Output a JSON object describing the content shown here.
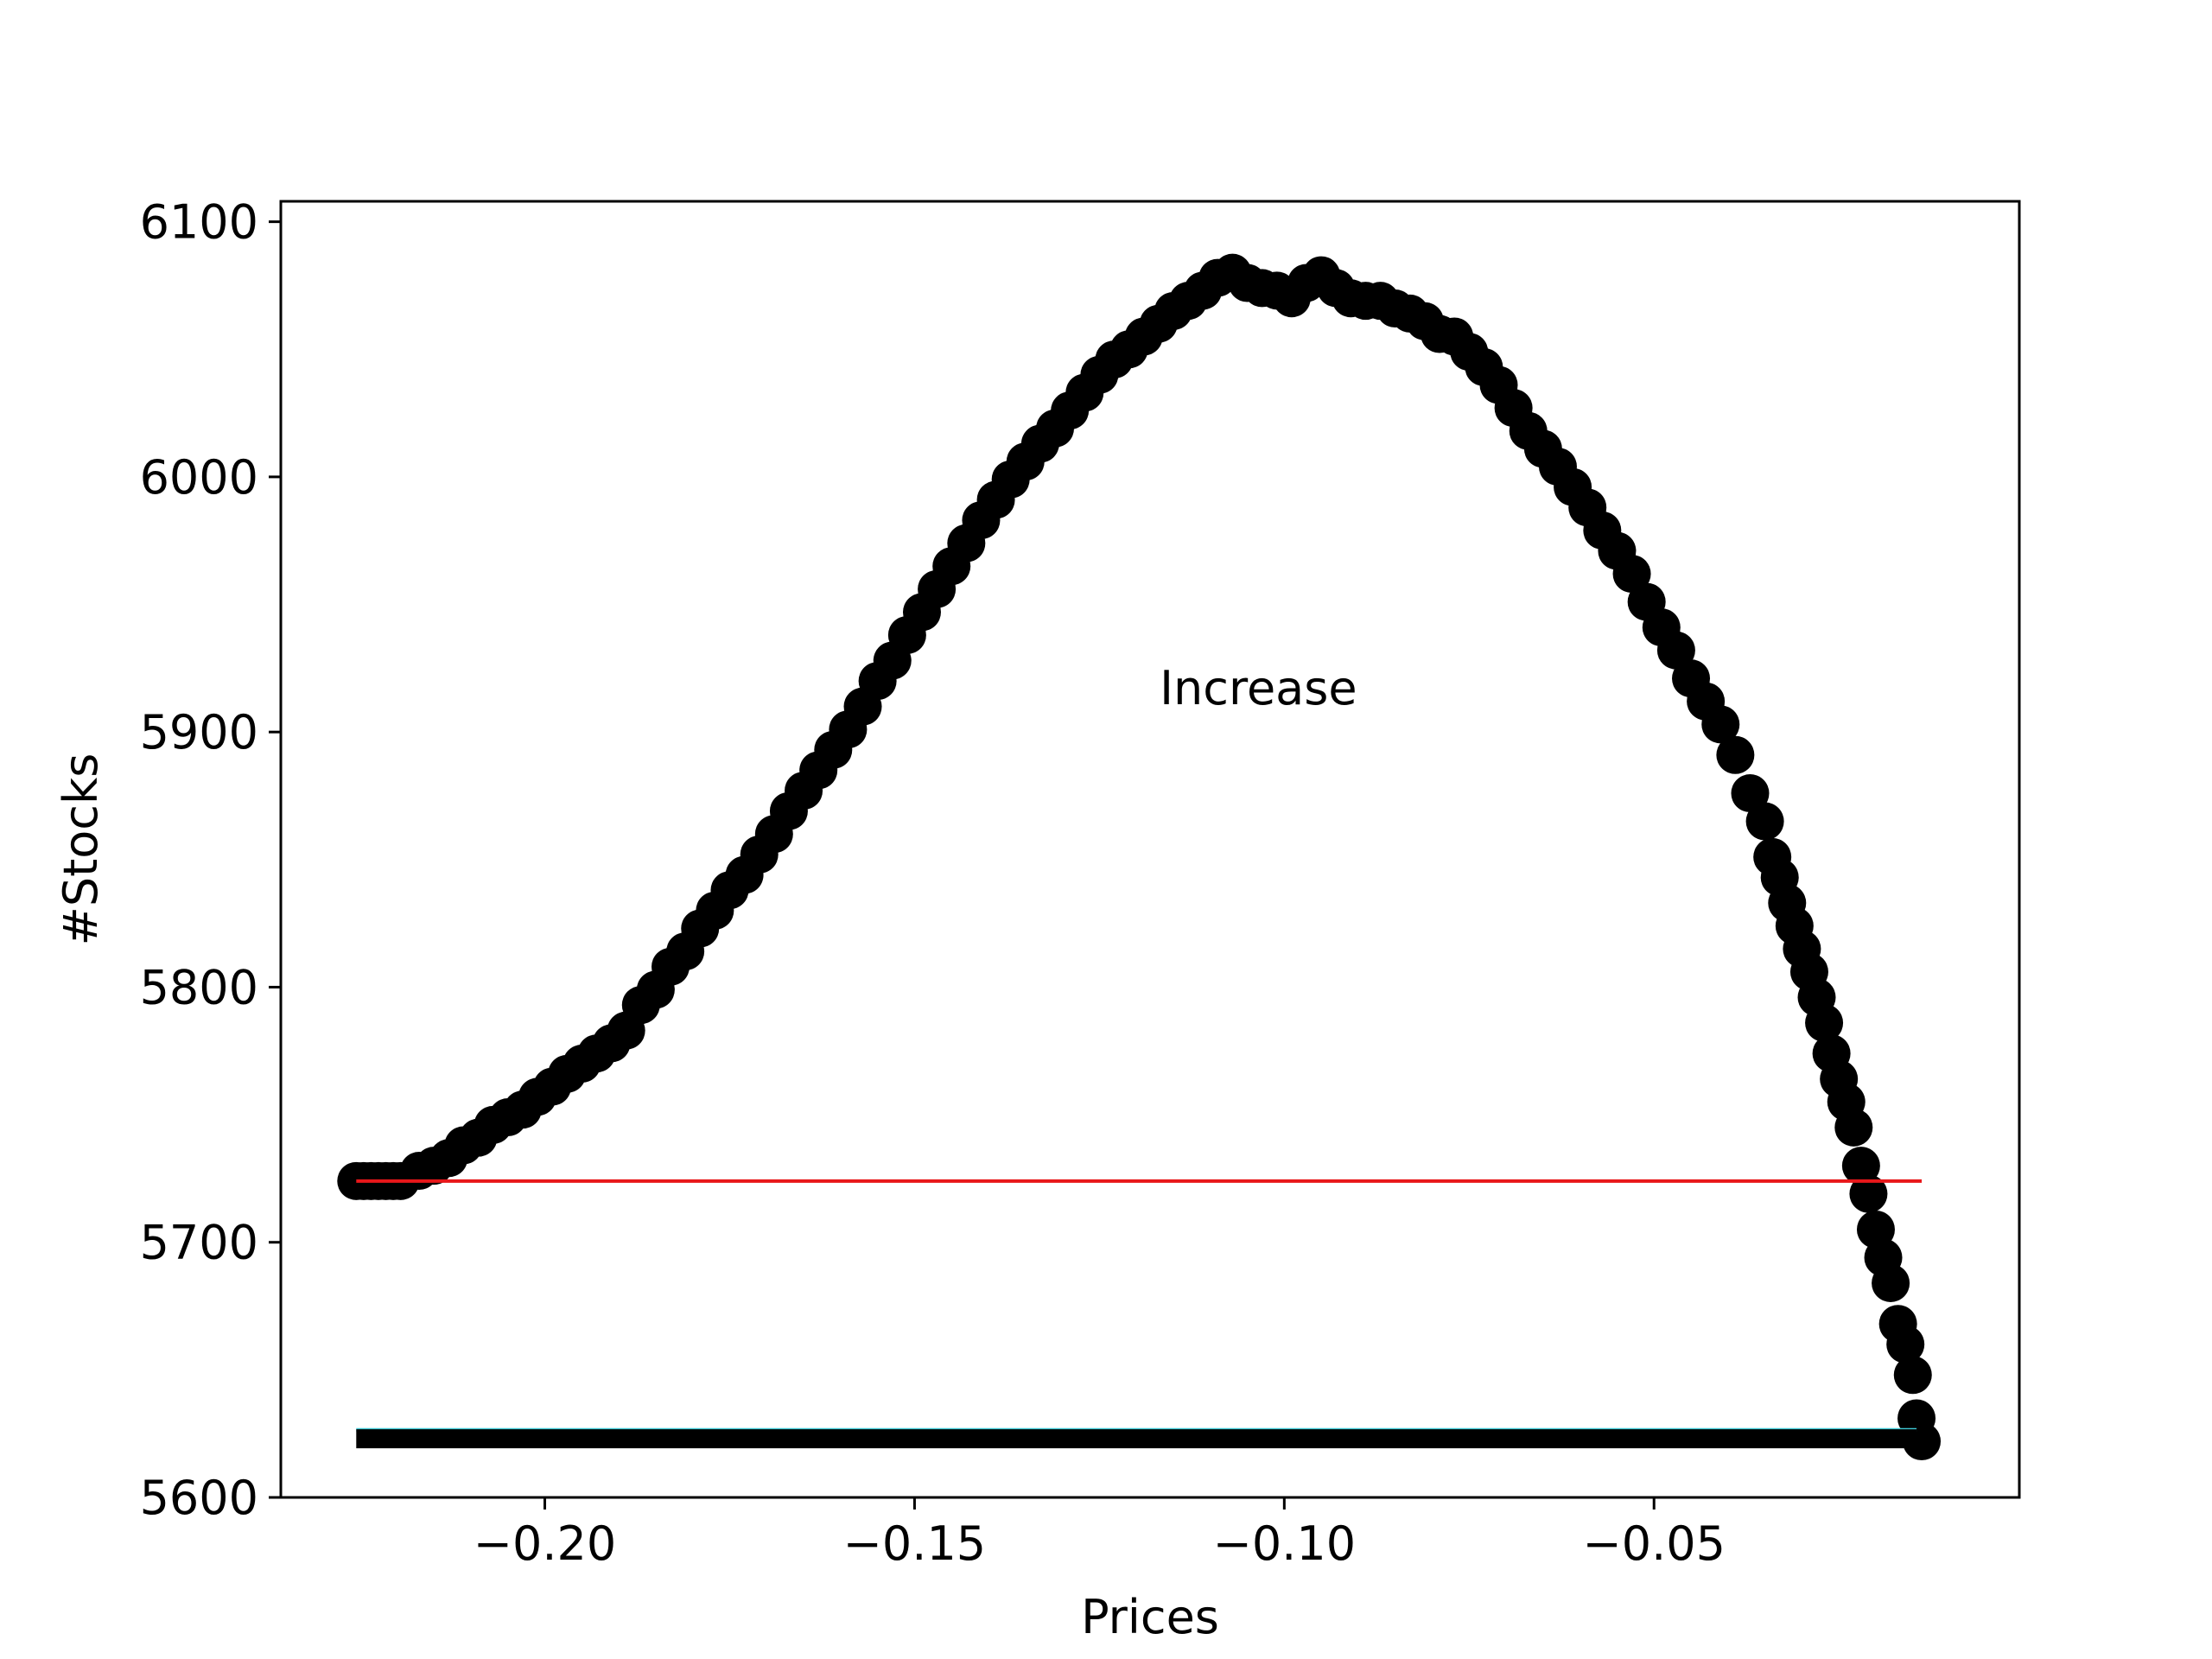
{
  "chart_data": {
    "type": "scatter",
    "xlabel": "Prices",
    "ylabel": "#Stocks",
    "annotation": "Increase",
    "xlim": [
      -0.2357,
      -0.0006
    ],
    "ylim": [
      5600,
      6108
    ],
    "xticks": [
      -0.2,
      -0.15,
      -0.1,
      -0.05
    ],
    "xtick_labels": [
      "−0.20",
      "−0.15",
      "−0.10",
      "−0.05"
    ],
    "yticks": [
      5600,
      5700,
      5800,
      5900,
      6000,
      6100
    ],
    "ytick_labels": [
      "5600",
      "5700",
      "5800",
      "5900",
      "6000",
      "6100"
    ],
    "grid": false,
    "series": [
      {
        "style": "markers",
        "color": "#000000",
        "points": [
          [
            -0.2255,
            5724
          ],
          [
            -0.2245,
            5724
          ],
          [
            -0.2235,
            5724
          ],
          [
            -0.2225,
            5724
          ],
          [
            -0.2215,
            5724
          ],
          [
            -0.2205,
            5724
          ],
          [
            -0.2195,
            5724
          ],
          [
            -0.217,
            5728
          ],
          [
            -0.215,
            5730
          ],
          [
            -0.213,
            5733
          ],
          [
            -0.211,
            5738
          ],
          [
            -0.209,
            5741
          ],
          [
            -0.207,
            5746
          ],
          [
            -0.205,
            5749
          ],
          [
            -0.203,
            5752
          ],
          [
            -0.201,
            5757
          ],
          [
            -0.199,
            5761
          ],
          [
            -0.197,
            5766
          ],
          [
            -0.195,
            5770
          ],
          [
            -0.193,
            5774
          ],
          [
            -0.191,
            5778
          ],
          [
            -0.189,
            5783
          ],
          [
            -0.187,
            5793
          ],
          [
            -0.185,
            5799
          ],
          [
            -0.183,
            5808
          ],
          [
            -0.181,
            5814
          ],
          [
            -0.179,
            5823
          ],
          [
            -0.177,
            5830
          ],
          [
            -0.175,
            5838
          ],
          [
            -0.173,
            5844
          ],
          [
            -0.171,
            5852
          ],
          [
            -0.169,
            5860
          ],
          [
            -0.167,
            5869
          ],
          [
            -0.165,
            5877
          ],
          [
            -0.163,
            5885
          ],
          [
            -0.161,
            5893
          ],
          [
            -0.159,
            5901
          ],
          [
            -0.157,
            5910
          ],
          [
            -0.155,
            5920
          ],
          [
            -0.153,
            5928
          ],
          [
            -0.151,
            5938
          ],
          [
            -0.149,
            5947
          ],
          [
            -0.147,
            5956
          ],
          [
            -0.145,
            5965
          ],
          [
            -0.143,
            5974
          ],
          [
            -0.141,
            5983
          ],
          [
            -0.139,
            5991
          ],
          [
            -0.137,
            5999
          ],
          [
            -0.135,
            6006
          ],
          [
            -0.133,
            6013
          ],
          [
            -0.131,
            6019
          ],
          [
            -0.129,
            6026
          ],
          [
            -0.127,
            6033
          ],
          [
            -0.125,
            6040
          ],
          [
            -0.123,
            6046
          ],
          [
            -0.121,
            6050
          ],
          [
            -0.119,
            6055
          ],
          [
            -0.117,
            6060
          ],
          [
            -0.115,
            6065
          ],
          [
            -0.113,
            6069
          ],
          [
            -0.111,
            6073
          ],
          [
            -0.109,
            6078
          ],
          [
            -0.107,
            6080
          ],
          [
            -0.105,
            6076
          ],
          [
            -0.103,
            6074
          ],
          [
            -0.101,
            6073
          ],
          [
            -0.099,
            6070
          ],
          [
            -0.097,
            6076
          ],
          [
            -0.095,
            6079
          ],
          [
            -0.093,
            6074
          ],
          [
            -0.091,
            6070
          ],
          [
            -0.089,
            6069
          ],
          [
            -0.087,
            6069
          ],
          [
            -0.085,
            6066
          ],
          [
            -0.083,
            6064
          ],
          [
            -0.081,
            6061
          ],
          [
            -0.079,
            6056
          ],
          [
            -0.077,
            6055
          ],
          [
            -0.075,
            6049
          ],
          [
            -0.073,
            6043
          ],
          [
            -0.071,
            6036
          ],
          [
            -0.069,
            6027
          ],
          [
            -0.067,
            6018
          ],
          [
            -0.065,
            6011
          ],
          [
            -0.063,
            6004
          ],
          [
            -0.061,
            5996
          ],
          [
            -0.059,
            5988
          ],
          [
            -0.057,
            5979
          ],
          [
            -0.055,
            5971
          ],
          [
            -0.053,
            5962
          ],
          [
            -0.051,
            5951
          ],
          [
            -0.049,
            5941
          ],
          [
            -0.047,
            5932
          ],
          [
            -0.045,
            5921
          ],
          [
            -0.043,
            5912
          ],
          [
            -0.041,
            5903
          ],
          [
            -0.039,
            5891
          ],
          [
            -0.037,
            5876
          ],
          [
            -0.035,
            5865
          ],
          [
            -0.034,
            5851
          ],
          [
            -0.033,
            5843
          ],
          [
            -0.032,
            5833
          ],
          [
            -0.031,
            5824
          ],
          [
            -0.03,
            5815
          ],
          [
            -0.029,
            5806
          ],
          [
            -0.028,
            5796
          ],
          [
            -0.027,
            5786
          ],
          [
            -0.026,
            5774
          ],
          [
            -0.025,
            5764
          ],
          [
            -0.024,
            5755
          ],
          [
            -0.023,
            5745
          ],
          [
            -0.022,
            5730
          ],
          [
            -0.021,
            5719
          ],
          [
            -0.02,
            5705
          ],
          [
            -0.019,
            5694
          ],
          [
            -0.018,
            5684
          ],
          [
            -0.017,
            5668
          ],
          [
            -0.016,
            5660
          ],
          [
            -0.015,
            5648
          ],
          [
            -0.0145,
            5631
          ],
          [
            -0.0138,
            5622
          ]
        ]
      },
      {
        "style": "line",
        "color": "#e8171a",
        "x": [
          -0.2255,
          -0.0138
        ],
        "y": [
          5724,
          5724
        ]
      },
      {
        "style": "line",
        "color": "#3fc9d6",
        "x": [
          -0.2255,
          -0.0145
        ],
        "y": [
          5626.5,
          5626.5
        ]
      },
      {
        "style": "thick-line",
        "color": "#000000",
        "x": [
          -0.2255,
          -0.0145
        ],
        "y": [
          5623,
          5623
        ]
      }
    ]
  }
}
